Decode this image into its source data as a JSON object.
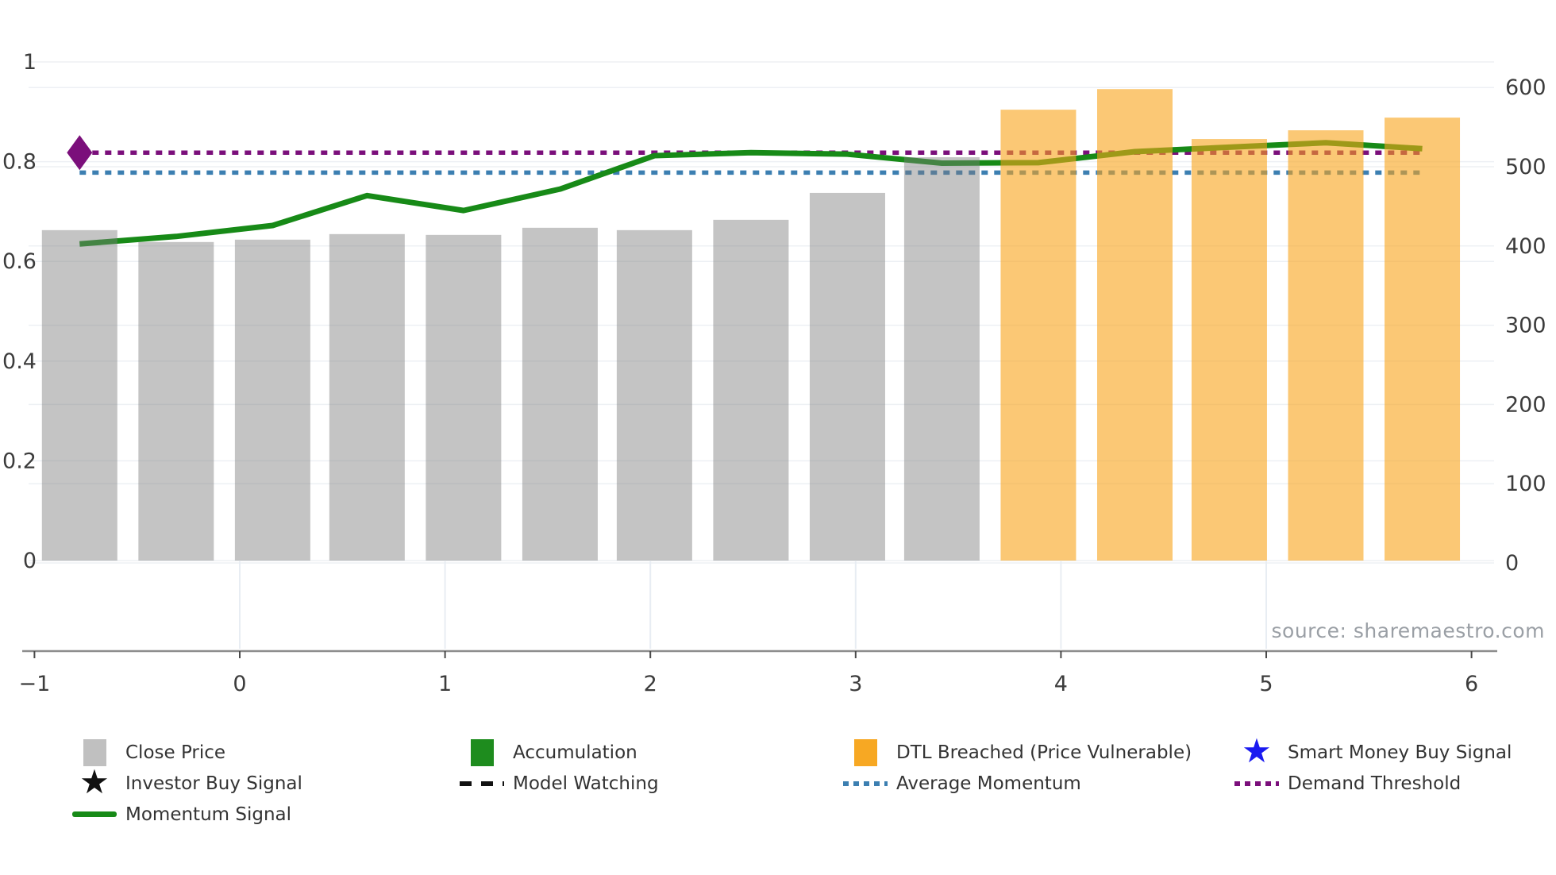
{
  "source_note": "source: sharemaestro.com",
  "colors": {
    "close_bar_fill": "rgba(125,125,125,0.45)",
    "dtl_bar_fill": "rgba(248,163,25,0.60)",
    "close_legend": "#c0c0c0",
    "accumulation_green": "#1e8c1e",
    "dtl_orange": "#f7a823",
    "momentum_green": "#178a17",
    "average_momentum_blue": "#3c7fb1",
    "demand_threshold_purple": "#7b0f7b",
    "smart_money_blue": "#1a1af0",
    "investor_black": "#111111",
    "gridline": "#edf0f4",
    "axis_line": "#8c8c8c",
    "tick_text": "#3c3c3c",
    "source_text": "#9a9fa5"
  },
  "chart_data": {
    "type": "bar",
    "combo": "bar series (right axis) + momentum line and reference lines (left axis)",
    "x_axis": {
      "range": [
        -1.05,
        6.35
      ],
      "tick_values": [
        -1,
        0,
        1,
        2,
        3,
        4,
        5,
        6
      ],
      "tick_labels": [
        "−1",
        "0",
        "1",
        "2",
        "3",
        "4",
        "5",
        "6"
      ],
      "vertical_gridlines_at": [
        0,
        1,
        2,
        3,
        4,
        5
      ]
    },
    "left_y_axis": {
      "range": [
        0,
        1.03
      ],
      "tick_values": [
        0,
        0.2,
        0.4,
        0.6,
        0.8,
        1
      ],
      "tick_labels": [
        "0",
        "0.2",
        "0.4",
        "0.6",
        "0.8",
        "1"
      ]
    },
    "right_y_axis": {
      "range": [
        0,
        618
      ],
      "tick_values": [
        0,
        100,
        200,
        300,
        400,
        500,
        600
      ],
      "tick_labels": [
        "0",
        "100",
        "200",
        "300",
        "400",
        "500",
        "600"
      ]
    },
    "bars": {
      "axis": "right",
      "x": [
        -0.78,
        -0.31,
        0.16,
        0.62,
        1.09,
        1.56,
        2.02,
        2.49,
        2.96,
        3.42,
        3.89,
        4.36,
        4.82,
        5.29,
        5.76
      ],
      "values": [
        420,
        405,
        408,
        415,
        414,
        423,
        420,
        433,
        467,
        512,
        572,
        598,
        535,
        546,
        562
      ],
      "status": [
        "close",
        "close",
        "close",
        "close",
        "close",
        "close",
        "close",
        "close",
        "close",
        "close",
        "dtl_breached",
        "dtl_breached",
        "dtl_breached",
        "dtl_breached",
        "dtl_breached"
      ]
    },
    "momentum_signal": {
      "axis": "left",
      "values": [
        0.635,
        0.65,
        0.672,
        0.732,
        0.702,
        0.745,
        0.812,
        0.818,
        0.815,
        0.797,
        0.798,
        0.82,
        0.829,
        0.838,
        0.826
      ]
    },
    "reference_lines": [
      {
        "name": "Demand Threshold",
        "axis": "left",
        "value": 0.818,
        "style": "dotted",
        "color": "#7b0f7b"
      },
      {
        "name": "Average Momentum",
        "axis": "left",
        "value": 0.778,
        "style": "dotted",
        "color": "#3c7fb1"
      }
    ],
    "markers": [
      {
        "name": "demand-threshold-start-diamond",
        "shape": "diamond",
        "x": -0.78,
        "value": 0.818,
        "color": "#7b0f7b"
      }
    ],
    "title": "",
    "xlabel": "",
    "ylabel": ""
  },
  "legend": {
    "columns": [
      {
        "items": [
          {
            "label": "Close Price",
            "marker": "square",
            "color": "#c0c0c0"
          },
          {
            "label": "Investor Buy Signal",
            "marker": "star",
            "color": "#111111"
          },
          {
            "label": "Momentum Signal",
            "marker": "line",
            "color": "#178a17"
          }
        ]
      },
      {
        "items": [
          {
            "label": "Accumulation",
            "marker": "square",
            "color": "#1e8c1e"
          },
          {
            "label": "Model Watching",
            "marker": "dash",
            "color": "#111111"
          }
        ]
      },
      {
        "items": [
          {
            "label": "DTL Breached (Price Vulnerable)",
            "marker": "square",
            "color": "#f7a823"
          },
          {
            "label": "Average Momentum",
            "marker": "dots",
            "color": "#3c7fb1"
          }
        ]
      },
      {
        "items": [
          {
            "label": "Smart Money Buy Signal",
            "marker": "star",
            "color": "#1a1af0"
          },
          {
            "label": "Demand Threshold",
            "marker": "dots",
            "color": "#7b0f7b"
          }
        ]
      }
    ]
  }
}
